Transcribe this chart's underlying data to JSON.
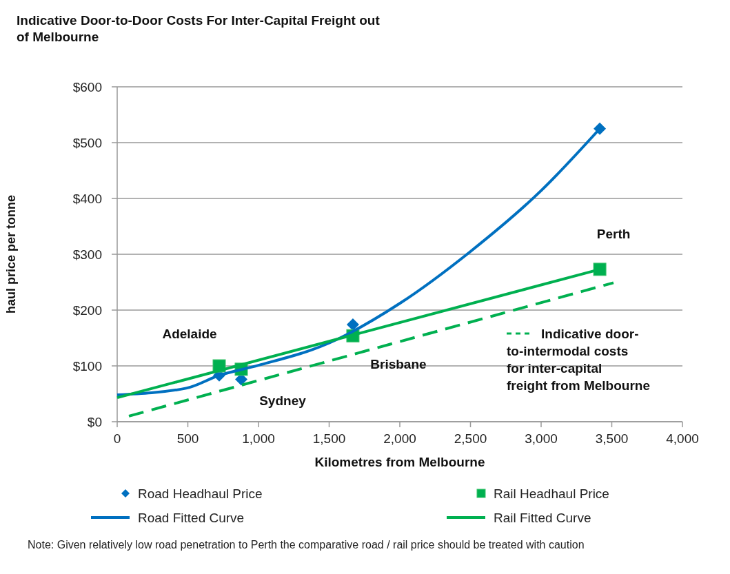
{
  "chart_data": {
    "type": "scatter",
    "title": "Indicative Door-to-Door Costs For Inter-Capital Freight out of Melbourne",
    "xlabel": "Kilometres from Melbourne",
    "ylabel": "haul price per tonne",
    "xlim": [
      0,
      4000
    ],
    "xticks": [
      {
        "value": 0,
        "label": "0"
      },
      {
        "value": 500,
        "label": "500"
      },
      {
        "value": 1000,
        "label": "1,000"
      },
      {
        "value": 1500,
        "label": "1,500"
      },
      {
        "value": 2000,
        "label": "2,000"
      },
      {
        "value": 2500,
        "label": "2,500"
      },
      {
        "value": 3000,
        "label": "3,000"
      },
      {
        "value": 3500,
        "label": "3,500"
      },
      {
        "value": 4000,
        "label": "4,000"
      }
    ],
    "ylim": [
      0,
      600
    ],
    "yticks": [
      {
        "value": 0,
        "label": "$0"
      },
      {
        "value": 100,
        "label": "$100"
      },
      {
        "value": 200,
        "label": "$200"
      },
      {
        "value": 300,
        "label": "$300"
      },
      {
        "value": 400,
        "label": "$400"
      },
      {
        "value": 500,
        "label": "$500"
      },
      {
        "value": 600,
        "label": "$600"
      }
    ],
    "grid": "y",
    "legend": "bottom",
    "series": [
      {
        "name": "Road Headhaul Price",
        "marker": "diamond",
        "color": "#0070c0",
        "x": [
          722,
          878,
          1668,
          3415
        ],
        "values": [
          83,
          76,
          174,
          525
        ]
      },
      {
        "name": "Rail Headhaul Price",
        "marker": "square",
        "color": "#00b050",
        "x": [
          722,
          878,
          1668,
          3415
        ],
        "values": [
          100,
          94,
          154,
          273
        ]
      },
      {
        "name": "Road Fitted Curve",
        "type": "line",
        "marker": "none",
        "line_style": "solid",
        "color": "#0070c0",
        "x": [
          0,
          488,
          722,
          1000,
          1500,
          2000,
          2500,
          3000,
          3415
        ],
        "values": [
          48,
          60,
          83,
          101,
          141,
          212,
          305,
          414,
          525
        ]
      },
      {
        "name": "Rail Fitted Curve",
        "type": "line",
        "marker": "none",
        "line_style": "solid",
        "color": "#00b050",
        "x": [
          0,
          3415
        ],
        "values": [
          43,
          273
        ]
      },
      {
        "name": "Indicative door- to-intermodal costs for inter-capital freight from Melbourne",
        "type": "line",
        "marker": "none",
        "line_style": "dashed",
        "color": "#00b050",
        "x": [
          83,
          3512
        ],
        "values": [
          10,
          249
        ]
      }
    ],
    "annotations": [
      {
        "text": "Adelaide",
        "x": 722,
        "y": 100
      },
      {
        "text": "Sydney",
        "x": 878,
        "y": 76
      },
      {
        "text": "Brisbane",
        "x": 1668,
        "y": 154
      },
      {
        "text": "Perth",
        "x": 3415,
        "y": 273
      },
      "Note: Given relatively low road penetration to Perth the comparative road / rail price should be treated with caution"
    ]
  }
}
